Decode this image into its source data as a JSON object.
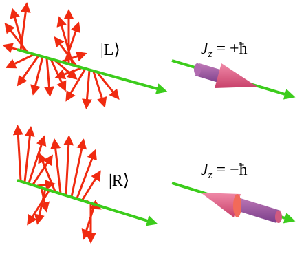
{
  "panels": [
    {
      "state": "|L⟩",
      "label": {
        "symbol": "J",
        "subscript": "z",
        "rhs": "= +ħ"
      }
    },
    {
      "state": "|R⟩",
      "label": {
        "symbol": "J",
        "subscript": "z",
        "rhs": "= −ħ"
      }
    }
  ]
}
